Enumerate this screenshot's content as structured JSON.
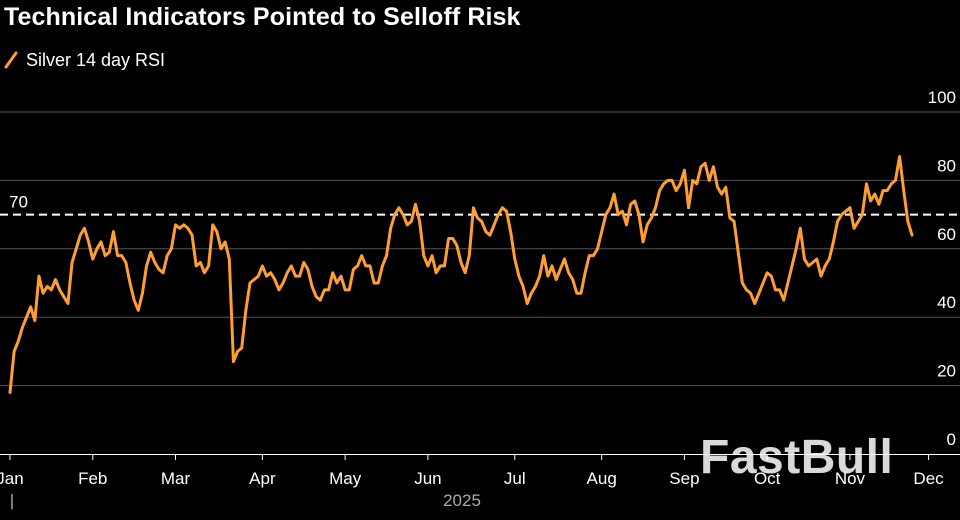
{
  "title": "Technical Indicators Pointed to Selloff Risk",
  "watermark": "FastBull",
  "colors": {
    "line": "#FF9E33",
    "grid": "#555555",
    "text": "#FFFFFF",
    "year": "#AAAAAA",
    "background": "#000000"
  },
  "chart_data": {
    "type": "line",
    "title": "Technical Indicators Pointed to Selloff Risk",
    "series": [
      {
        "name": "Silver 14 day RSI",
        "values": [
          18,
          30,
          33,
          37,
          40,
          43,
          39,
          52,
          47,
          49,
          48,
          51,
          48,
          46,
          44,
          56,
          60,
          64,
          66,
          62,
          57,
          60,
          62,
          58,
          59,
          65,
          58,
          58,
          56,
          50,
          45,
          42,
          47,
          55,
          59,
          56,
          54,
          53,
          58,
          60,
          67,
          66,
          67,
          66,
          64,
          55,
          56,
          53,
          55,
          67,
          65,
          60,
          62,
          57,
          27,
          30,
          31,
          42,
          50,
          51,
          52,
          55,
          52,
          53,
          51,
          48,
          50,
          53,
          55,
          52,
          52,
          56,
          54,
          49,
          46,
          45,
          48,
          48,
          53,
          50,
          52,
          48,
          48,
          54,
          55,
          58,
          55,
          55,
          50,
          50,
          55,
          58,
          66,
          70,
          72,
          70,
          67,
          68,
          73,
          68,
          58,
          55,
          58,
          53,
          55,
          55,
          63,
          63,
          61,
          56,
          53,
          58,
          72,
          69,
          68,
          65,
          64,
          67,
          70,
          72,
          71,
          65,
          57,
          52,
          49,
          44,
          47,
          49,
          52,
          58,
          52,
          55,
          51,
          54,
          57,
          53,
          51,
          47,
          47,
          53,
          58,
          58,
          60,
          65,
          70,
          72,
          76,
          70,
          71,
          67,
          73,
          74,
          70,
          62,
          67,
          69,
          72,
          77,
          79,
          80,
          80,
          77,
          79,
          83,
          72,
          80,
          79,
          84,
          85,
          80,
          84,
          78,
          76,
          78,
          69,
          68,
          59,
          50,
          48,
          47,
          44,
          47,
          50,
          53,
          52,
          48,
          48,
          45,
          50,
          55,
          60,
          66,
          57,
          55,
          56,
          57,
          52,
          55,
          57,
          62,
          68,
          70,
          71,
          72,
          66,
          68,
          70,
          79,
          74,
          76,
          73,
          77,
          77,
          79,
          80,
          87,
          77,
          68,
          64
        ]
      }
    ],
    "x_labels": [
      "Jan",
      "Feb",
      "Mar",
      "Apr",
      "May",
      "Jun",
      "Jul",
      "Aug",
      "Sep",
      "Oct",
      "Nov",
      "Dec"
    ],
    "x_label_index": [
      0,
      20,
      40,
      61,
      81,
      101,
      122,
      143,
      163,
      183,
      203,
      222
    ],
    "year_label": "2025",
    "year_marker": "|",
    "ylim": [
      0,
      100
    ],
    "yticks": [
      "100",
      "80",
      "60",
      "40",
      "20",
      "0"
    ],
    "reference_line": {
      "value": 70,
      "label": "70",
      "style": "dashed"
    },
    "legend": {
      "label": "Silver 14 day RSI",
      "position": "top-left"
    },
    "grid": true
  }
}
